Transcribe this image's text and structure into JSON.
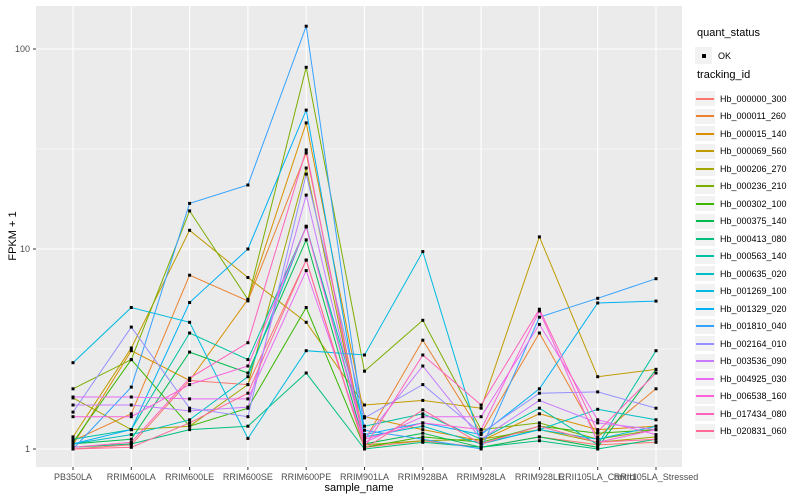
{
  "figure": {
    "background": "#FFFFFF",
    "panel_background": "#EBEBEB",
    "gridline_color": "#FFFFFF",
    "tick_color": "#333333",
    "tick_label_color": "#4D4D4D",
    "point_color": "#000000"
  },
  "legend": {
    "quant_status_title": "quant_status",
    "quant_status_items": [
      {
        "label": "OK"
      }
    ],
    "tracking_id_title": "tracking_id"
  },
  "chart_data": {
    "type": "line",
    "title": "",
    "xlabel": "sample_name",
    "ylabel": "FPKM + 1",
    "y_scale": "log10",
    "ylim": [
      1,
      140
    ],
    "y_tick_values": [
      1,
      10,
      100
    ],
    "y_tick_labels": [
      "1",
      "10",
      "100"
    ],
    "y_minor_tick_values": [
      3.1623,
      31.623
    ],
    "grid": true,
    "legend_position": "right",
    "point_marker": "filled black square",
    "categories": [
      "PB350LA",
      "RRIM600LA",
      "RRIM600LE",
      "RRIM600SE",
      "RRIM600PE",
      "RRIM901LA",
      "RRIM928BA",
      "RRIM928LA",
      "RRIM928LE",
      "RRII105LA_Control",
      "RRII105LA_Stressed"
    ],
    "series": [
      {
        "name": "Hb_000000_300",
        "color": "#F8766D",
        "values": [
          1.0,
          1.05,
          2.2,
          2.1,
          8.8,
          1.02,
          1.1,
          1.02,
          1.15,
          1.05,
          1.08
        ]
      },
      {
        "name": "Hb_000011_260",
        "color": "#EA8331",
        "values": [
          1.1,
          1.5,
          7.4,
          5.5,
          30.2,
          1.1,
          3.5,
          1.2,
          3.8,
          1.15,
          2.0
        ]
      },
      {
        "name": "Hb_000015_140",
        "color": "#D89000",
        "values": [
          1.05,
          3.1,
          2.2,
          5.6,
          42.7,
          1.45,
          1.25,
          1.1,
          1.5,
          1.25,
          1.3
        ]
      },
      {
        "name": "Hb_000069_560",
        "color": "#C09B00",
        "values": [
          1.15,
          3.2,
          12.4,
          7.2,
          4.3,
          1.66,
          1.75,
          1.6,
          11.5,
          2.3,
          2.5
        ]
      },
      {
        "name": "Hb_000206_270",
        "color": "#A3A500",
        "values": [
          1.8,
          1.25,
          1.3,
          2.1,
          25.4,
          1.05,
          1.1,
          1.12,
          1.25,
          1.08,
          1.15
        ]
      },
      {
        "name": "Hb_000236_210",
        "color": "#7CAE00",
        "values": [
          2.0,
          2.8,
          15.5,
          5.6,
          81.0,
          2.45,
          4.4,
          1.25,
          1.35,
          1.12,
          1.25
        ]
      },
      {
        "name": "Hb_000302_100",
        "color": "#39B600",
        "values": [
          1.08,
          2.8,
          1.3,
          1.6,
          5.1,
          1.02,
          1.15,
          1.08,
          1.3,
          1.2,
          1.25
        ]
      },
      {
        "name": "Hb_000375_140",
        "color": "#00BB4E",
        "values": [
          1.06,
          1.12,
          3.05,
          2.4,
          11.1,
          1.06,
          1.2,
          1.02,
          1.15,
          1.02,
          2.5
        ]
      },
      {
        "name": "Hb_000413_080",
        "color": "#00BF7D",
        "values": [
          1.02,
          1.06,
          1.25,
          1.3,
          2.4,
          1.0,
          1.08,
          1.02,
          1.1,
          1.0,
          1.12
        ]
      },
      {
        "name": "Hb_000563_140",
        "color": "#00C1A3",
        "values": [
          1.12,
          1.25,
          3.8,
          2.8,
          12.9,
          1.3,
          1.5,
          1.12,
          1.6,
          1.05,
          3.1
        ]
      },
      {
        "name": "Hb_000635_020",
        "color": "#00BFC4",
        "values": [
          1.06,
          1.18,
          1.4,
          2.3,
          13.0,
          1.15,
          1.3,
          1.06,
          1.25,
          1.58,
          1.4
        ]
      },
      {
        "name": "Hb_001269_100",
        "color": "#00BAE0",
        "values": [
          2.7,
          5.1,
          4.3,
          1.13,
          3.1,
          2.95,
          9.7,
          1.06,
          1.25,
          1.12,
          1.3
        ]
      },
      {
        "name": "Hb_001329_020",
        "color": "#00B0F6",
        "values": [
          1.06,
          1.25,
          5.4,
          10.0,
          49.5,
          1.18,
          1.35,
          1.18,
          2.0,
          5.37,
          5.49
        ]
      },
      {
        "name": "Hb_001810_040",
        "color": "#35A2FF",
        "values": [
          1.0,
          2.04,
          16.9,
          20.9,
          130.0,
          1.24,
          1.12,
          1.0,
          4.56,
          5.67,
          7.1
        ]
      },
      {
        "name": "Hb_002164_010",
        "color": "#9590FF",
        "values": [
          1.53,
          4.07,
          1.6,
          1.45,
          23.7,
          1.43,
          2.1,
          1.2,
          1.9,
          1.93,
          1.6
        ]
      },
      {
        "name": "Hb_003536_090",
        "color": "#C77CFF",
        "values": [
          1.66,
          1.66,
          1.55,
          1.62,
          18.6,
          1.12,
          2.6,
          1.12,
          1.75,
          1.35,
          1.25
        ]
      },
      {
        "name": "Hb_004925_030",
        "color": "#E76BF3",
        "values": [
          1.82,
          1.82,
          1.78,
          1.78,
          7.8,
          1.08,
          1.45,
          1.45,
          4.2,
          1.4,
          1.18
        ]
      },
      {
        "name": "Hb_006538_160",
        "color": "#FA62DB",
        "values": [
          1.45,
          1.45,
          2.1,
          2.6,
          12.9,
          1.12,
          1.35,
          1.25,
          4.9,
          1.08,
          1.25
        ]
      },
      {
        "name": "Hb_017434_080",
        "color": "#FF62BC",
        "values": [
          1.02,
          1.08,
          2.26,
          3.4,
          31.3,
          1.02,
          2.95,
          1.66,
          5.0,
          1.22,
          2.4
        ]
      },
      {
        "name": "Hb_020831_060",
        "color": "#FF6A98",
        "values": [
          1.0,
          1.02,
          1.35,
          1.9,
          8.8,
          1.0,
          1.57,
          1.06,
          1.3,
          1.08,
          1.12
        ]
      }
    ]
  }
}
